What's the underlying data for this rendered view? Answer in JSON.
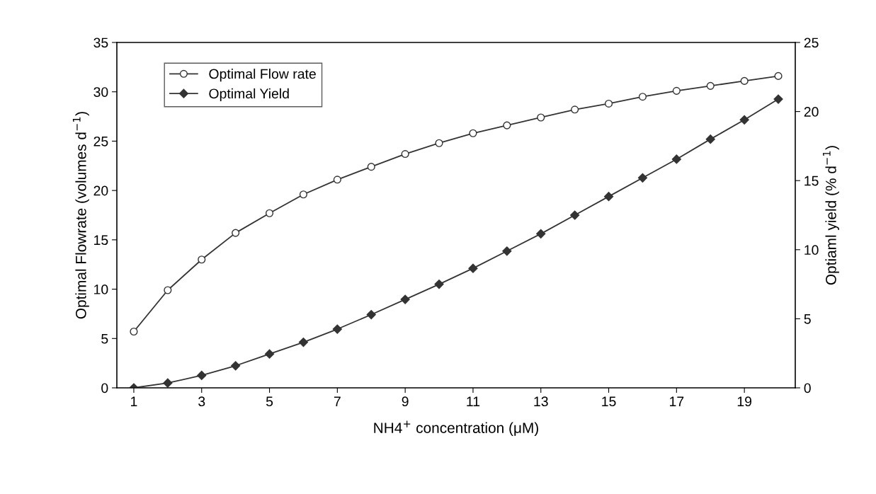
{
  "chart_data": {
    "type": "line",
    "xlabel": "NH4$^{+}$ concentration (μM)",
    "ylabel": "Optimal Flowrate (volumes d$^{−1}$)",
    "y2label": "Optiaml yield (% d$^{−1}$)",
    "x": [
      1,
      2,
      3,
      4,
      5,
      6,
      7,
      8,
      9,
      10,
      11,
      12,
      13,
      14,
      15,
      16,
      17,
      18,
      19,
      20
    ],
    "xlim": [
      0.5,
      20.5
    ],
    "xticks": [
      1,
      3,
      5,
      7,
      9,
      11,
      13,
      15,
      17,
      19
    ],
    "ylim": [
      0,
      35
    ],
    "yticks": [
      0,
      5,
      10,
      15,
      20,
      25,
      30,
      35
    ],
    "y2lim": [
      0,
      25
    ],
    "y2ticks": [
      0,
      5,
      10,
      15,
      20,
      25
    ],
    "grid": false,
    "legend": "top left",
    "line_style": "solid",
    "series": [
      {
        "name": "Optimal Flow rate",
        "color": "#333333",
        "marker": "circle",
        "values": [
          5.7,
          9.9,
          13.0,
          15.7,
          17.7,
          19.6,
          21.1,
          22.4,
          23.7,
          24.8,
          25.8,
          26.6,
          27.4,
          28.2,
          28.8,
          29.5,
          30.1,
          30.6,
          31.1,
          31.6
        ]
      },
      {
        "name": "Optimal Yield",
        "color": "#333333",
        "marker": "diamond",
        "axis": "y2",
        "values": [
          0.0,
          0.35,
          0.9,
          1.6,
          2.45,
          3.3,
          4.25,
          5.3,
          6.4,
          7.5,
          8.65,
          9.9,
          11.15,
          12.5,
          13.85,
          15.2,
          16.55,
          18.0,
          19.4,
          20.9
        ]
      }
    ]
  }
}
